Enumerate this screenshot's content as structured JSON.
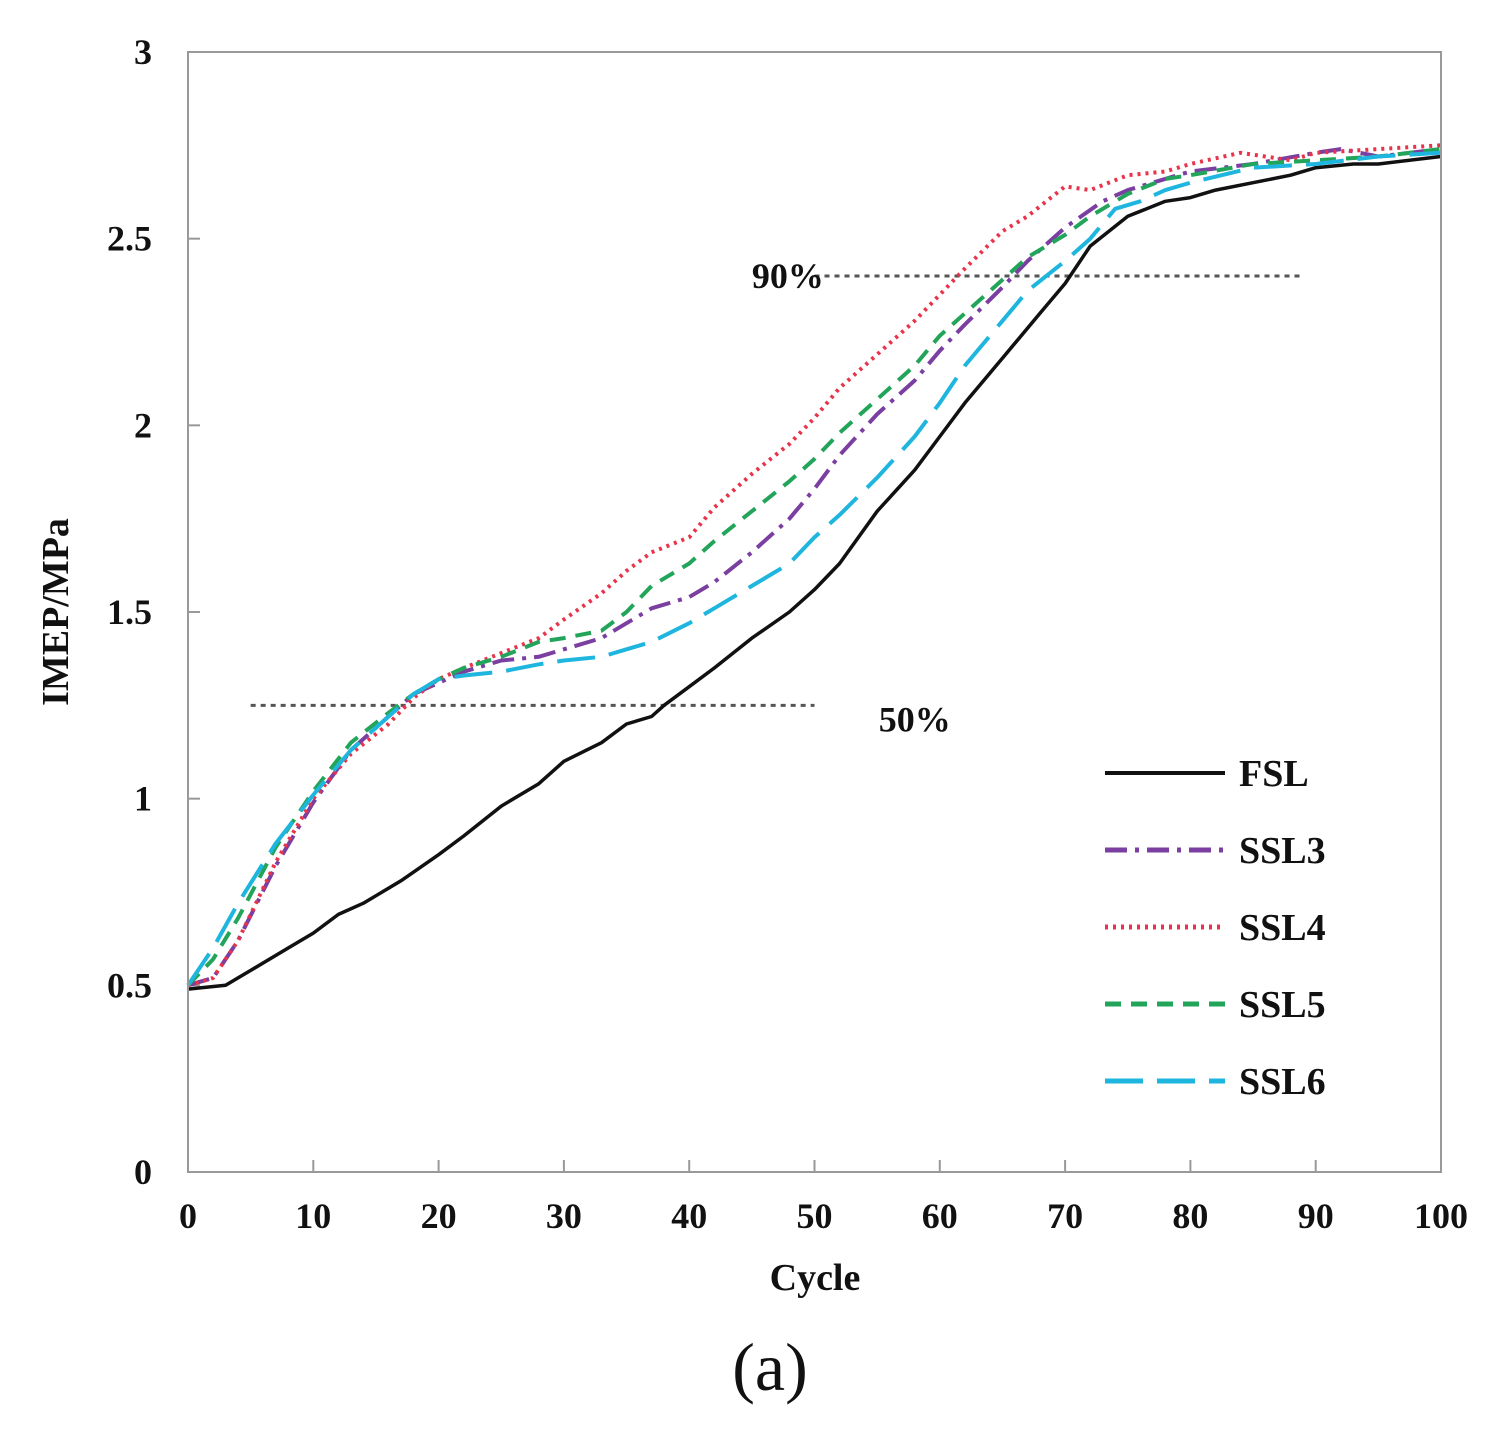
{
  "chart_data": {
    "type": "line",
    "xlabel": "Cycle",
    "ylabel": "IMEP/MPa",
    "xlim": [
      0,
      100
    ],
    "ylim": [
      0,
      3
    ],
    "x_ticks": [
      0,
      10,
      20,
      30,
      40,
      50,
      60,
      70,
      80,
      90,
      100
    ],
    "y_ticks": [
      0,
      0.5,
      1,
      1.5,
      2,
      2.5,
      3
    ],
    "x_tick_labels": [
      "0",
      "10",
      "20",
      "30",
      "40",
      "50",
      "60",
      "70",
      "80",
      "90",
      "100"
    ],
    "y_tick_labels": [
      "0",
      "0.5",
      "1",
      "1.5",
      "2",
      "2.5",
      "3"
    ],
    "grid": false,
    "legend_position": "lower-right",
    "caption": "(a)",
    "annotations": [
      {
        "label": "50%",
        "y": 1.25,
        "x_start": 5,
        "x_end": 50,
        "label_x": 58
      },
      {
        "label": "90%",
        "y": 2.4,
        "x_start": 50,
        "x_end": 89,
        "label_x": 45
      }
    ],
    "series": [
      {
        "name": "FSL",
        "color": "#111111",
        "dash": "solid",
        "x": [
          0,
          3,
          5,
          8,
          10,
          12,
          14,
          17,
          20,
          22,
          25,
          28,
          30,
          33,
          35,
          37,
          38,
          40,
          42,
          45,
          48,
          50,
          52,
          55,
          58,
          60,
          62,
          65,
          68,
          70,
          72,
          75,
          78,
          80,
          82,
          85,
          88,
          90,
          93,
          95,
          100
        ],
        "y": [
          0.49,
          0.5,
          0.54,
          0.6,
          0.64,
          0.69,
          0.72,
          0.78,
          0.85,
          0.9,
          0.98,
          1.04,
          1.1,
          1.15,
          1.2,
          1.22,
          1.25,
          1.3,
          1.35,
          1.43,
          1.5,
          1.56,
          1.63,
          1.77,
          1.88,
          1.97,
          2.06,
          2.18,
          2.3,
          2.38,
          2.48,
          2.56,
          2.6,
          2.61,
          2.63,
          2.65,
          2.67,
          2.69,
          2.7,
          2.7,
          2.72
        ]
      },
      {
        "name": "SSL3",
        "color": "#7a3fa0",
        "dash": "22,8,4,8",
        "x": [
          0,
          2,
          4,
          7,
          10,
          13,
          16,
          18,
          20,
          22,
          25,
          28,
          30,
          33,
          35,
          37,
          40,
          42,
          45,
          48,
          50,
          52,
          55,
          58,
          60,
          62,
          65,
          67,
          70,
          73,
          75,
          78,
          80,
          85,
          90,
          92,
          95,
          100
        ],
        "y": [
          0.5,
          0.52,
          0.62,
          0.82,
          0.99,
          1.13,
          1.22,
          1.28,
          1.31,
          1.34,
          1.37,
          1.38,
          1.4,
          1.43,
          1.47,
          1.51,
          1.54,
          1.58,
          1.66,
          1.75,
          1.83,
          1.92,
          2.03,
          2.12,
          2.2,
          2.27,
          2.37,
          2.44,
          2.53,
          2.6,
          2.63,
          2.66,
          2.68,
          2.7,
          2.73,
          2.74,
          2.72,
          2.74
        ]
      },
      {
        "name": "SSL4",
        "color": "#e8334a",
        "dash": "3,5",
        "x": [
          0,
          2,
          4,
          7,
          10,
          13,
          16,
          18,
          20,
          22,
          25,
          28,
          30,
          33,
          35,
          37,
          40,
          42,
          45,
          48,
          50,
          52,
          55,
          58,
          60,
          62,
          65,
          67,
          70,
          72,
          75,
          78,
          80,
          84,
          88,
          90,
          95,
          100
        ],
        "y": [
          0.5,
          0.52,
          0.62,
          0.83,
          1.0,
          1.12,
          1.2,
          1.27,
          1.32,
          1.35,
          1.39,
          1.43,
          1.48,
          1.55,
          1.61,
          1.66,
          1.7,
          1.78,
          1.87,
          1.95,
          2.02,
          2.1,
          2.19,
          2.28,
          2.35,
          2.42,
          2.52,
          2.56,
          2.64,
          2.63,
          2.67,
          2.68,
          2.7,
          2.73,
          2.71,
          2.73,
          2.74,
          2.75
        ]
      },
      {
        "name": "SSL5",
        "color": "#22a55a",
        "dash": "16,10",
        "x": [
          0,
          2,
          4,
          7,
          10,
          13,
          16,
          18,
          20,
          22,
          25,
          28,
          30,
          33,
          35,
          37,
          40,
          42,
          45,
          48,
          50,
          52,
          55,
          58,
          60,
          62,
          65,
          67,
          70,
          72,
          75,
          78,
          80,
          85,
          90,
          95,
          100
        ],
        "y": [
          0.5,
          0.57,
          0.68,
          0.87,
          1.02,
          1.15,
          1.23,
          1.28,
          1.32,
          1.35,
          1.38,
          1.42,
          1.43,
          1.45,
          1.5,
          1.57,
          1.63,
          1.69,
          1.77,
          1.85,
          1.91,
          1.98,
          2.07,
          2.16,
          2.24,
          2.3,
          2.39,
          2.45,
          2.51,
          2.56,
          2.62,
          2.66,
          2.67,
          2.7,
          2.71,
          2.72,
          2.74
        ]
      },
      {
        "name": "SSL6",
        "color": "#1eb6de",
        "dash": "38,14",
        "x": [
          0,
          2,
          4,
          7,
          10,
          13,
          16,
          18,
          20,
          22,
          25,
          28,
          30,
          33,
          35,
          37,
          40,
          42,
          45,
          48,
          50,
          52,
          55,
          58,
          60,
          62,
          65,
          67,
          70,
          72,
          74,
          76,
          78,
          80,
          85,
          90,
          95,
          100
        ],
        "y": [
          0.5,
          0.6,
          0.72,
          0.88,
          1.01,
          1.13,
          1.22,
          1.28,
          1.32,
          1.33,
          1.34,
          1.36,
          1.37,
          1.38,
          1.4,
          1.42,
          1.47,
          1.51,
          1.57,
          1.63,
          1.7,
          1.76,
          1.86,
          1.97,
          2.06,
          2.16,
          2.28,
          2.36,
          2.44,
          2.5,
          2.58,
          2.6,
          2.63,
          2.65,
          2.69,
          2.7,
          2.72,
          2.73
        ]
      }
    ]
  }
}
